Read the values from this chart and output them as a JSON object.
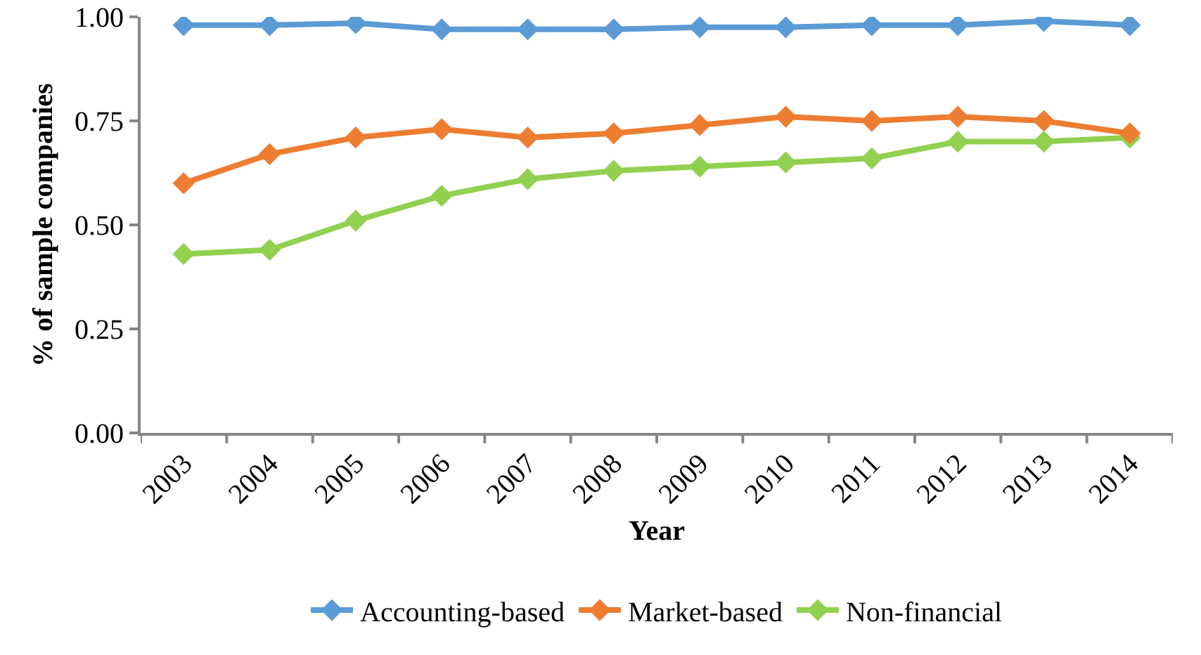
{
  "chart_data": {
    "type": "line",
    "xlabel": "Year",
    "ylabel": "% of sample companies",
    "categories": [
      "2003",
      "2004",
      "2005",
      "2006",
      "2007",
      "2008",
      "2009",
      "2010",
      "2011",
      "2012",
      "2013",
      "2014"
    ],
    "series": [
      {
        "name": "Accounting-based",
        "color": "#5b9bd5",
        "values": [
          0.98,
          0.98,
          0.985,
          0.97,
          0.97,
          0.97,
          0.975,
          0.975,
          0.98,
          0.98,
          0.99,
          0.98
        ]
      },
      {
        "name": "Market-based",
        "color": "#ed7d31",
        "values": [
          0.6,
          0.67,
          0.71,
          0.73,
          0.71,
          0.72,
          0.74,
          0.76,
          0.75,
          0.76,
          0.75,
          0.72
        ]
      },
      {
        "name": "Non-financial",
        "color": "#92d050",
        "values": [
          0.43,
          0.44,
          0.51,
          0.57,
          0.61,
          0.63,
          0.64,
          0.65,
          0.66,
          0.7,
          0.7,
          0.71
        ]
      }
    ],
    "ylim": [
      0,
      1
    ],
    "yticks": [
      {
        "value": 0,
        "label": "0.00"
      },
      {
        "value": 0.25,
        "label": "0.25"
      },
      {
        "value": 0.5,
        "label": "0.50"
      },
      {
        "value": 0.75,
        "label": "0.75"
      },
      {
        "value": 1,
        "label": "1.00"
      }
    ],
    "grid": false,
    "legend": "bottom",
    "marker": "diamond",
    "line_style": "solid"
  }
}
